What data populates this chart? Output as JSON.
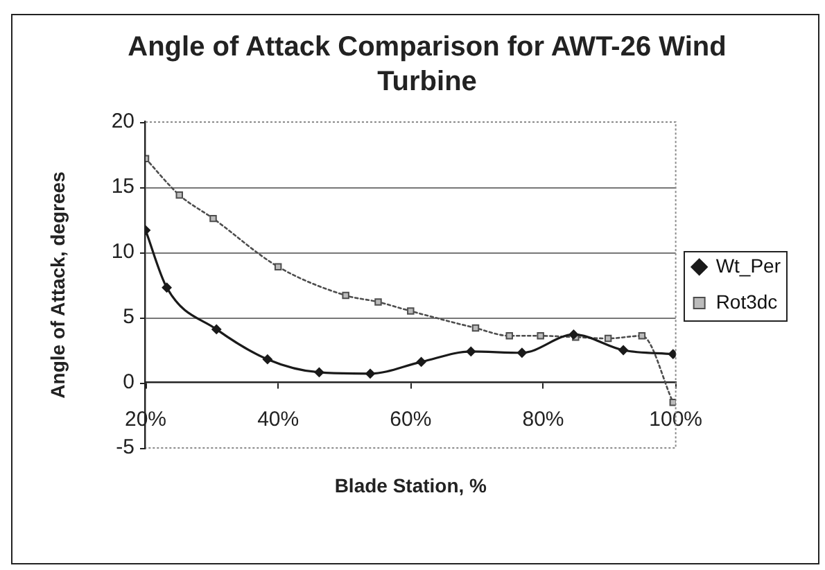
{
  "chart_data": {
    "type": "line",
    "title": "Angle of Attack Comparison for AWT-26 Wind Turbine",
    "xlabel": "Blade Station, %",
    "ylabel": "Angle of Attack, degrees",
    "xlim": [
      20,
      100
    ],
    "xticks": [
      {
        "value": 20,
        "label": "20%"
      },
      {
        "value": 40,
        "label": "40%"
      },
      {
        "value": 60,
        "label": "60%"
      },
      {
        "value": 80,
        "label": "80%"
      },
      {
        "value": 100,
        "label": "100%"
      }
    ],
    "ylim": [
      -5,
      20
    ],
    "yticks": [
      -5,
      0,
      5,
      10,
      15,
      20
    ],
    "grid": "y",
    "legend": "right",
    "series": [
      {
        "name": "Wt_Per",
        "color": "#1a1a1a",
        "marker": "diamond",
        "line_style": "solid",
        "x": [
          20,
          23.2,
          30.7,
          38.4,
          46.2,
          53.9,
          61.6,
          69.1,
          76.8,
          84.6,
          92.1,
          99.6
        ],
        "values": [
          11.7,
          7.3,
          4.1,
          1.8,
          0.8,
          0.7,
          1.6,
          2.4,
          2.3,
          3.7,
          2.5,
          2.2
        ]
      },
      {
        "name": "Rot3dc",
        "color": "#4d4d4d",
        "marker": "square",
        "line_style": "dotted",
        "x": [
          20,
          25.1,
          30.2,
          40,
          50.2,
          55.1,
          60,
          69.8,
          74.9,
          79.6,
          84.9,
          89.8,
          94.9,
          99.6
        ],
        "values": [
          17.2,
          14.4,
          12.6,
          8.9,
          6.7,
          6.2,
          5.5,
          4.2,
          3.6,
          3.6,
          3.5,
          3.4,
          3.6,
          -1.5
        ]
      }
    ]
  }
}
